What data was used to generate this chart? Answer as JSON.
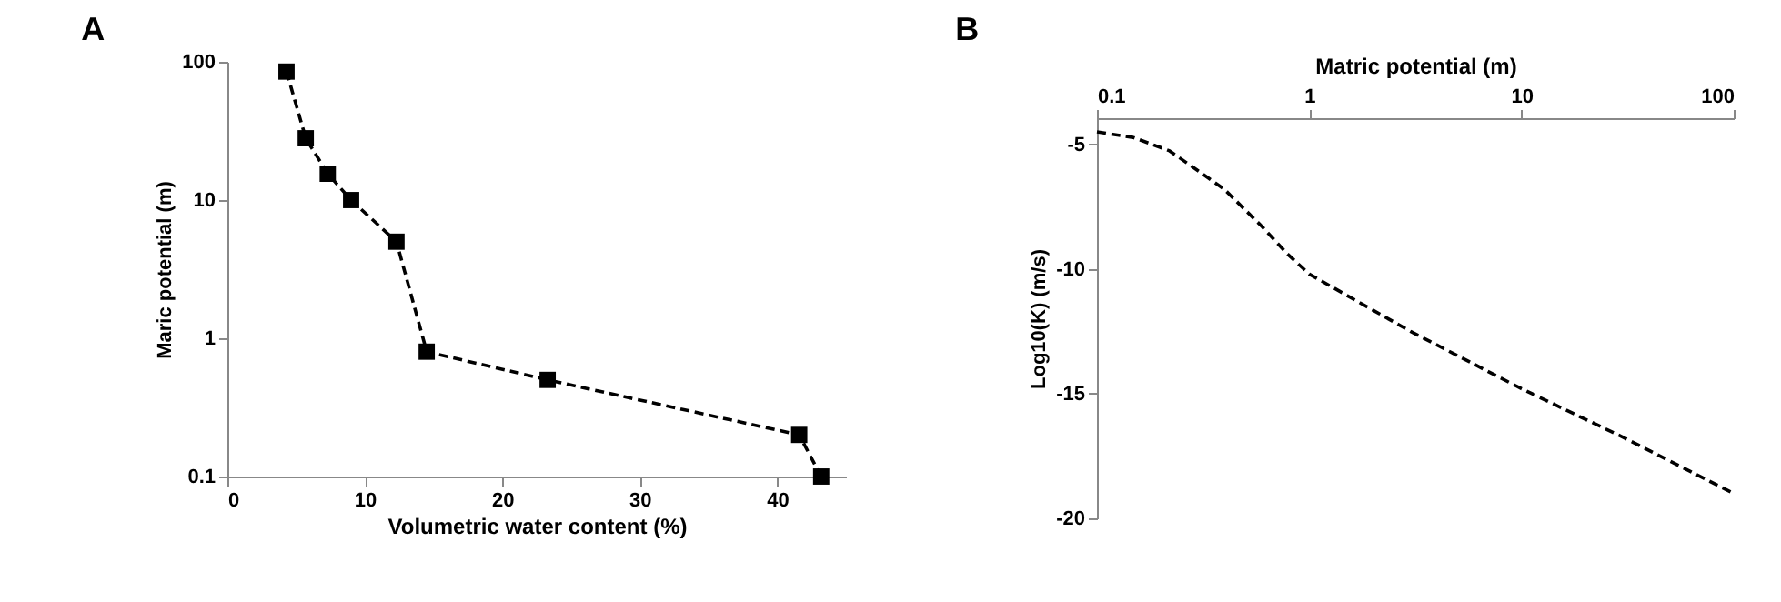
{
  "chart_data": [
    {
      "type": "line",
      "title": "A",
      "xlabel": "Volumetric water content (%)",
      "ylabel": "Maric potential (m)",
      "xlim": [
        0,
        45
      ],
      "xticks": [
        0,
        10,
        20,
        30,
        40
      ],
      "ylim": [
        0.1,
        100
      ],
      "yticks": [
        0.1,
        1,
        10,
        100
      ],
      "log": "y",
      "marker": "square",
      "line_style": "dashed",
      "series": [
        {
          "color": "#000000",
          "x": [
            4.3,
            5.7,
            7.3,
            9,
            12.3,
            14.5,
            23.3,
            41.6,
            43.2
          ],
          "values": [
            85,
            28,
            15.5,
            10,
            5,
            0.8,
            0.5,
            0.2,
            0.1
          ]
        }
      ]
    },
    {
      "type": "line",
      "title": "B",
      "xlabel": "Matric potential (m)",
      "ylabel": "Log10(K) (m/s)",
      "xlim": [
        0.1,
        100
      ],
      "xticks": [
        0.1,
        1,
        10,
        100
      ],
      "ylim": [
        -20,
        -3.95
      ],
      "yticks": [
        -5,
        -10,
        -15,
        -20
      ],
      "log": "x",
      "marker": "none",
      "line_style": "dashed",
      "series": [
        {
          "color": "#000000",
          "x": [
            0.1,
            0.148,
            0.22,
            0.398,
            0.6,
            0.79,
            1,
            1.69,
            3,
            10,
            31,
            100
          ],
          "values": [
            -4.5,
            -4.72,
            -5.26,
            -6.8,
            -8.3,
            -9.4,
            -10.2,
            -11.3,
            -12.5,
            -14.8,
            -16.8,
            -19
          ]
        }
      ]
    }
  ]
}
